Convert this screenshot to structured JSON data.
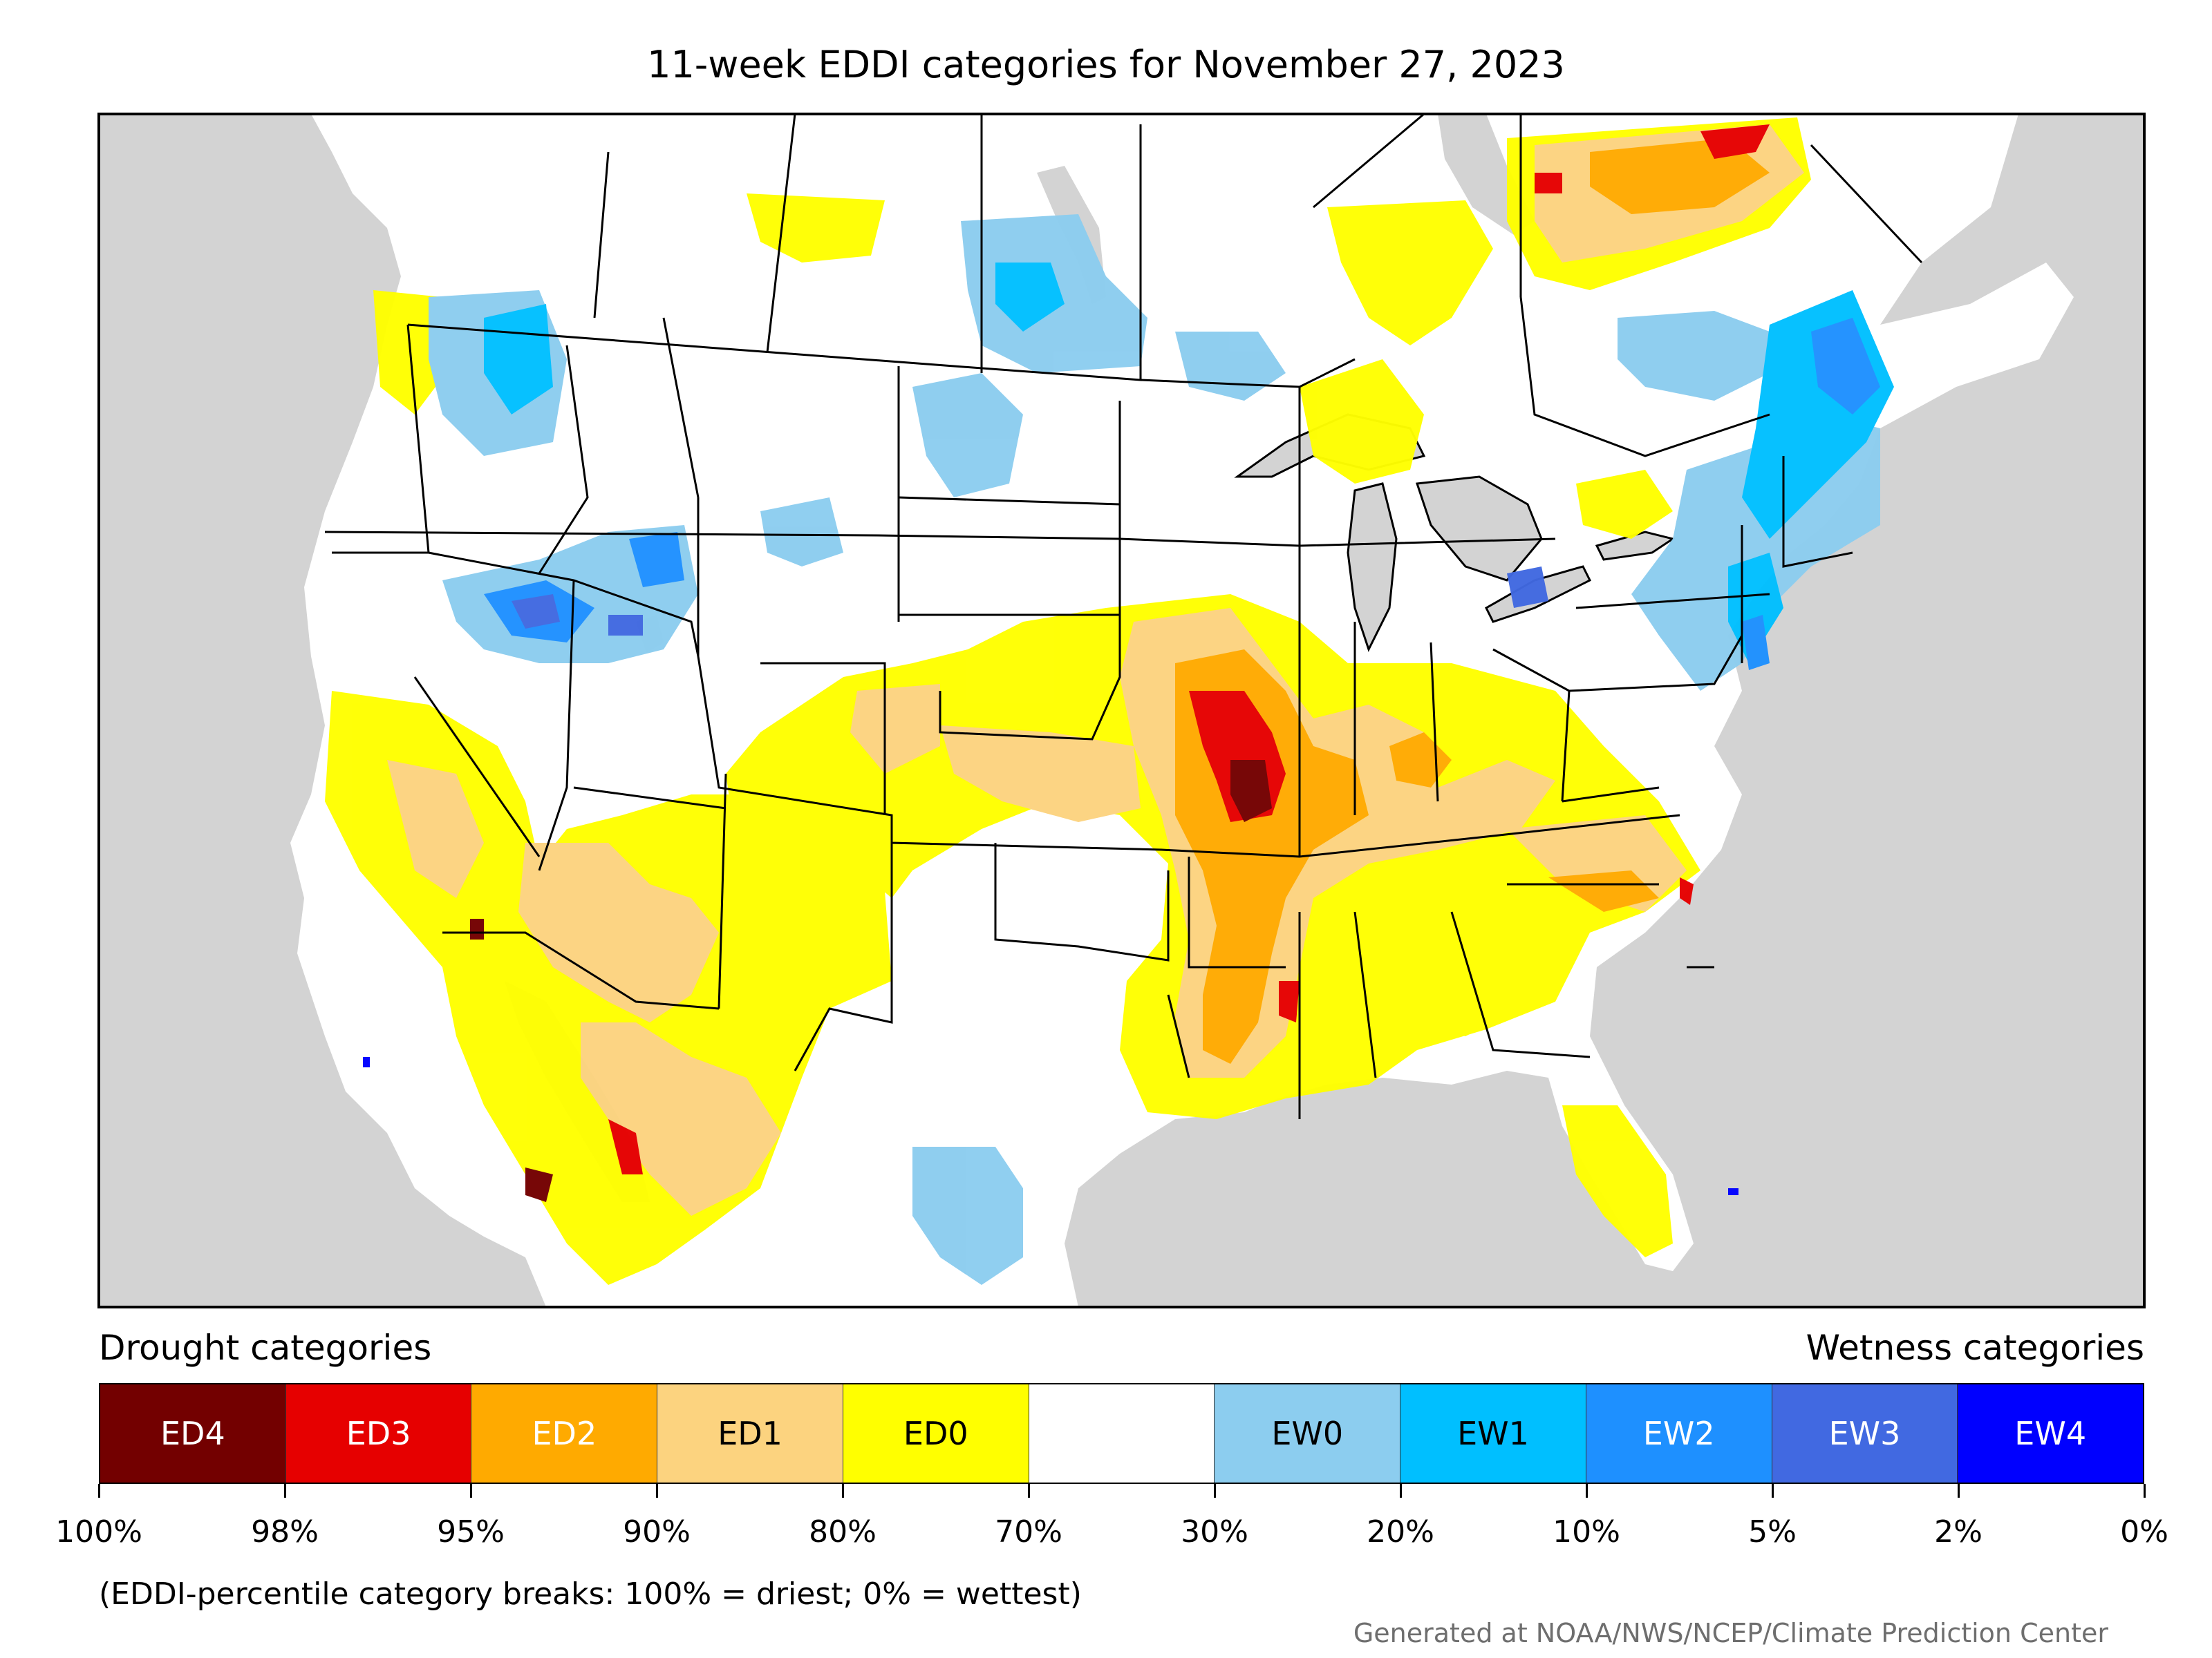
{
  "title": "11-week EDDI categories for November 27, 2023",
  "legend": {
    "drought_heading": "Drought categories",
    "wetness_heading": "Wetness categories",
    "categories": [
      {
        "label": "ED4",
        "color": "#730000",
        "text_color": "#ffffff"
      },
      {
        "label": "ED3",
        "color": "#e60000",
        "text_color": "#ffffff"
      },
      {
        "label": "ED2",
        "color": "#ffaa00",
        "text_color": "#ffffff"
      },
      {
        "label": "ED1",
        "color": "#fcd37f",
        "text_color": "#000000"
      },
      {
        "label": "ED0",
        "color": "#ffff00",
        "text_color": "#000000"
      },
      {
        "label": "",
        "color": "#ffffff",
        "text_color": "#000000"
      },
      {
        "label": "EW0",
        "color": "#8ccdef",
        "text_color": "#000000"
      },
      {
        "label": "EW1",
        "color": "#00bfff",
        "text_color": "#000000"
      },
      {
        "label": "EW2",
        "color": "#1e90ff",
        "text_color": "#ffffff"
      },
      {
        "label": "EW3",
        "color": "#4169e1",
        "text_color": "#ffffff"
      },
      {
        "label": "EW4",
        "color": "#0000ff",
        "text_color": "#ffffff"
      }
    ],
    "tick_labels": [
      "100%",
      "98%",
      "95%",
      "90%",
      "80%",
      "70%",
      "30%",
      "20%",
      "10%",
      "5%",
      "2%",
      "0%"
    ]
  },
  "footnote": "(EDDI-percentile category breaks: 100% = driest; 0% = wettest)",
  "credit": "Generated at NOAA/NWS/NCEP/Climate Prediction Center",
  "colors": {
    "water": "#d3d3d3",
    "land": "#ffffff",
    "boundary": "#000000"
  }
}
